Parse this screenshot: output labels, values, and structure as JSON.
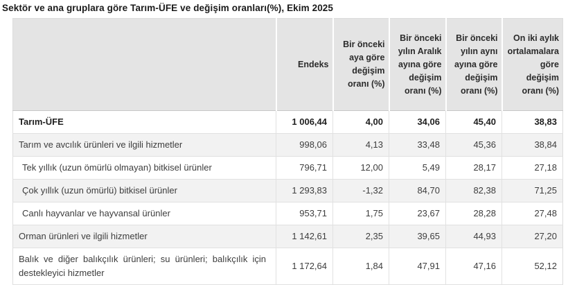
{
  "title": "Sektör ve ana gruplara göre Tarım-ÜFE ve değişim oranları(%), Ekim 2025",
  "chart_data": {
    "type": "table",
    "title": "Sektör ve ana gruplara göre Tarım-ÜFE ve değişim oranları(%), Ekim 2025",
    "columns": [
      "",
      "Endeks",
      "Bir önceki aya göre değişim oranı (%)",
      "Bir önceki yılın Aralık ayına göre değişim oranı (%)",
      "Bir önceki yılın aynı ayına göre değişim oranı (%)",
      "On iki aylık ortalamalara göre değişim oranı (%)"
    ],
    "rows": [
      {
        "label": "Tarım-ÜFE",
        "bold": true,
        "indent": false,
        "values": [
          "1 006,44",
          "4,00",
          "34,06",
          "45,40",
          "38,83"
        ]
      },
      {
        "label": "Tarım ve avcılık ürünleri ve ilgili hizmetler",
        "bold": false,
        "indent": false,
        "values": [
          "998,06",
          "4,13",
          "33,48",
          "45,36",
          "38,84"
        ]
      },
      {
        "label": "Tek yıllık (uzun ömürlü olmayan) bitkisel ürünler",
        "bold": false,
        "indent": true,
        "values": [
          "796,71",
          "12,00",
          "5,49",
          "28,17",
          "27,18"
        ]
      },
      {
        "label": "Çok yıllık (uzun ömürlü) bitkisel ürünler",
        "bold": false,
        "indent": true,
        "values": [
          "1 293,83",
          "-1,32",
          "84,70",
          "82,38",
          "71,25"
        ]
      },
      {
        "label": "Canlı hayvanlar ve hayvansal ürünler",
        "bold": false,
        "indent": true,
        "values": [
          "953,71",
          "1,75",
          "23,67",
          "28,28",
          "27,48"
        ]
      },
      {
        "label": "Orman ürünleri ve ilgili hizmetler",
        "bold": false,
        "indent": false,
        "values": [
          "1 142,61",
          "2,35",
          "39,65",
          "44,93",
          "27,20"
        ]
      },
      {
        "label": "Balık ve diğer balıkçılık ürünleri; su ürünleri; balıkçılık için destekleyici hizmetler",
        "bold": false,
        "indent": false,
        "values": [
          "1 172,64",
          "1,84",
          "47,91",
          "47,16",
          "52,12"
        ]
      }
    ],
    "layout_hints": {
      "zebra_striping": true,
      "header_alignment": "right",
      "value_alignment": "right",
      "decimal_separator": ",",
      "thousands_separator": " "
    }
  },
  "colors": {
    "header_bg": "#e4e4e4",
    "row_bg": "#ffffff",
    "row_alt_bg": "#f2f2f2",
    "cell_border": "#e1e1e1",
    "header_separator": "#ffffff",
    "header_bottom_border": "#c6c6c6",
    "title_text": "#1a1a1a",
    "body_text": "#3d3d3d"
  }
}
